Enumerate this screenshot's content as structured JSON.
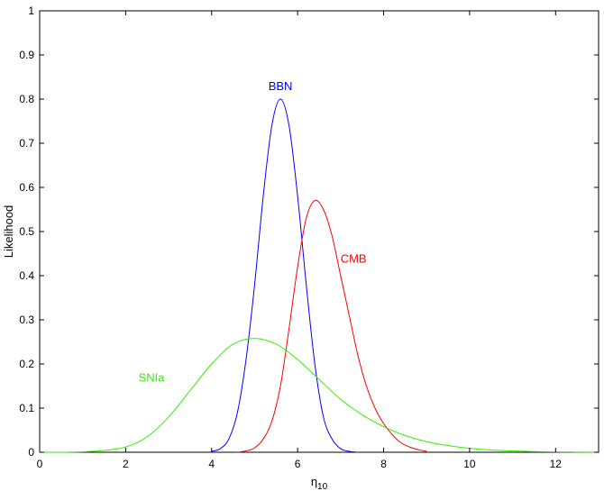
{
  "chart_data": {
    "type": "line",
    "title": "",
    "xlabel": "η",
    "xlabel_subscript": "10",
    "ylabel": "Likelihood",
    "xlim": [
      0,
      13
    ],
    "ylim": [
      0,
      1
    ],
    "xticks": [
      0,
      2,
      4,
      6,
      8,
      10,
      12
    ],
    "yticks": [
      0,
      0.1,
      0.2,
      0.3,
      0.4,
      0.5,
      0.6,
      0.7,
      0.8,
      0.9,
      1
    ],
    "grid": false,
    "legend": "none",
    "series": [
      {
        "name": "BBN",
        "color": "#0000ff",
        "label_at": [
          5.6,
          0.82
        ],
        "x": [
          4.0,
          4.2,
          4.4,
          4.6,
          4.8,
          5.0,
          5.2,
          5.4,
          5.6,
          5.8,
          6.0,
          6.2,
          6.4,
          6.6,
          6.8,
          7.0,
          7.2,
          7.4
        ],
        "y": [
          0.002,
          0.008,
          0.03,
          0.09,
          0.21,
          0.38,
          0.58,
          0.74,
          0.8,
          0.74,
          0.58,
          0.38,
          0.2,
          0.08,
          0.03,
          0.008,
          0.002,
          0.0
        ]
      },
      {
        "name": "CMB",
        "color": "#ff0000",
        "label_at": [
          7.3,
          0.43
        ],
        "x": [
          4.6,
          4.8,
          5.0,
          5.2,
          5.4,
          5.6,
          5.8,
          6.0,
          6.2,
          6.4,
          6.6,
          6.8,
          7.0,
          7.2,
          7.4,
          7.6,
          7.8,
          8.0,
          8.2,
          8.4,
          8.6,
          8.8,
          9.0
        ],
        "y": [
          0.0,
          0.003,
          0.01,
          0.03,
          0.07,
          0.15,
          0.28,
          0.42,
          0.53,
          0.57,
          0.55,
          0.49,
          0.4,
          0.31,
          0.22,
          0.15,
          0.1,
          0.065,
          0.04,
          0.022,
          0.012,
          0.006,
          0.002
        ]
      },
      {
        "name": "SNIa",
        "color": "#33ee00",
        "label_at": [
          2.6,
          0.16
        ],
        "x": [
          0.0,
          0.5,
          1.0,
          1.5,
          2.0,
          2.5,
          3.0,
          3.5,
          4.0,
          4.5,
          5.0,
          5.5,
          6.0,
          6.5,
          7.0,
          7.5,
          8.0,
          8.5,
          9.0,
          9.5,
          10.0,
          10.5,
          11.0,
          11.5,
          12.0,
          12.5,
          13.0
        ],
        "y": [
          0.0,
          0.0,
          0.001,
          0.004,
          0.012,
          0.035,
          0.08,
          0.14,
          0.2,
          0.245,
          0.258,
          0.245,
          0.21,
          0.165,
          0.12,
          0.085,
          0.058,
          0.038,
          0.024,
          0.015,
          0.009,
          0.005,
          0.003,
          0.0015,
          0.0008,
          0.0003,
          0.0001
        ]
      }
    ]
  }
}
